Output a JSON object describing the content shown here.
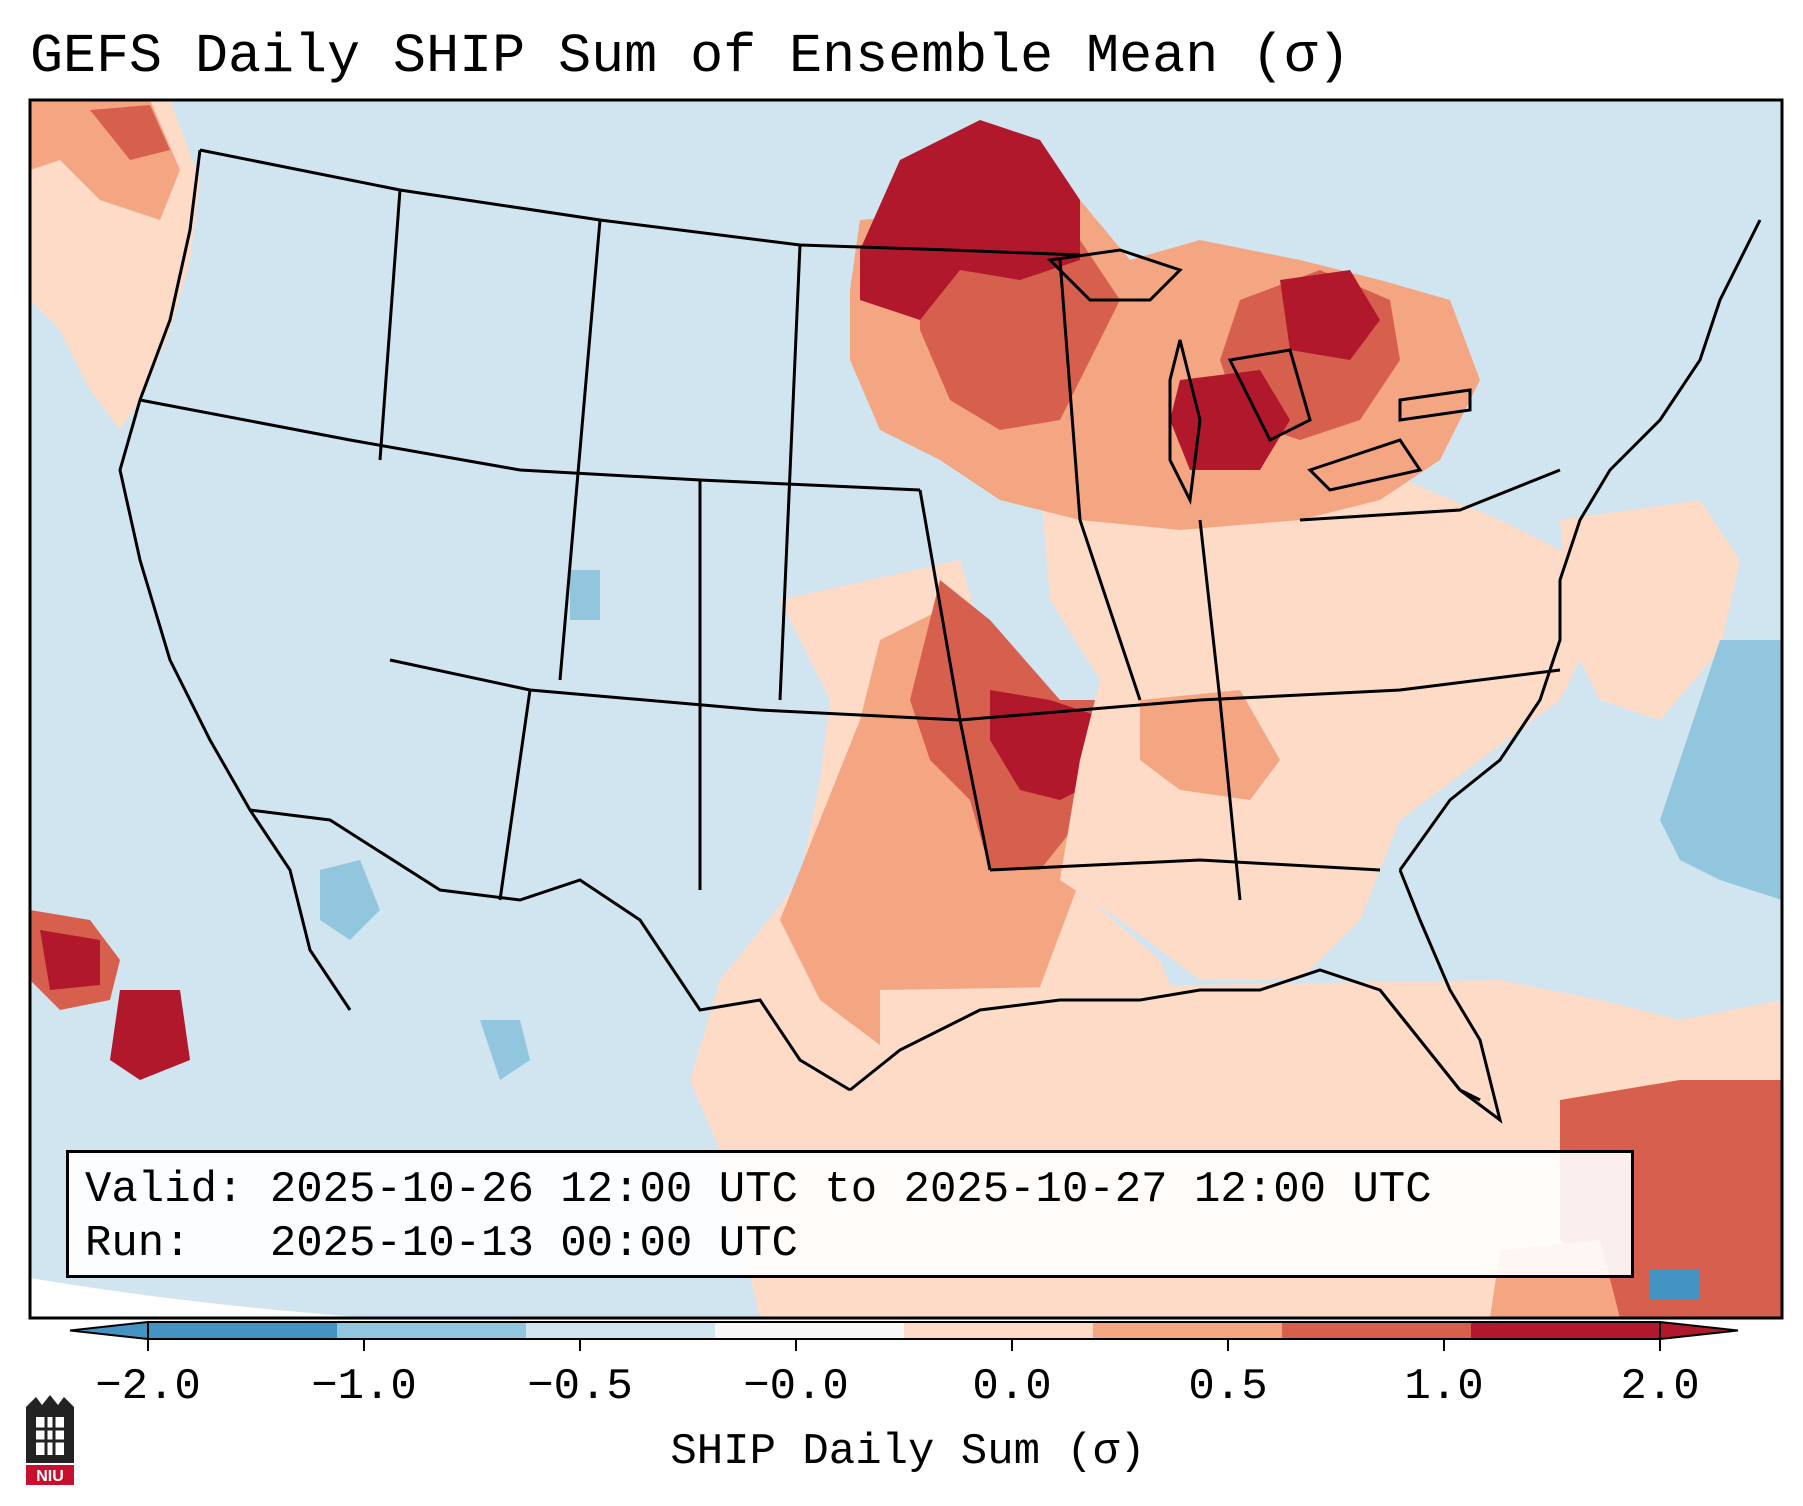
{
  "title": "GEFS Daily SHIP Sum of Ensemble Mean (σ)",
  "info": {
    "valid_line": "Valid: 2025-10-26 12:00 UTC to 2025-10-27 12:00 UTC",
    "run_line": "Run:   2025-10-13 00:00 UTC"
  },
  "colorbar": {
    "label": "SHIP Daily Sum (σ)",
    "ticks": [
      "−2.0",
      "−1.0",
      "−0.5",
      "−0.0",
      "0.0",
      "0.5",
      "1.0",
      "2.0"
    ],
    "colors": [
      "#4393c3",
      "#92c5de",
      "#d1e5f0",
      "#f7f7f7",
      "#fddbc7",
      "#f4a582",
      "#d6604d",
      "#b2182b"
    ],
    "extend": "both"
  },
  "logo": {
    "text": "NIU"
  },
  "map": {
    "region": "CONUS",
    "variable": "SHIP daily sum anomaly",
    "ocean_color": "#d1e5f0",
    "land_color": "#d1e5f0"
  }
}
